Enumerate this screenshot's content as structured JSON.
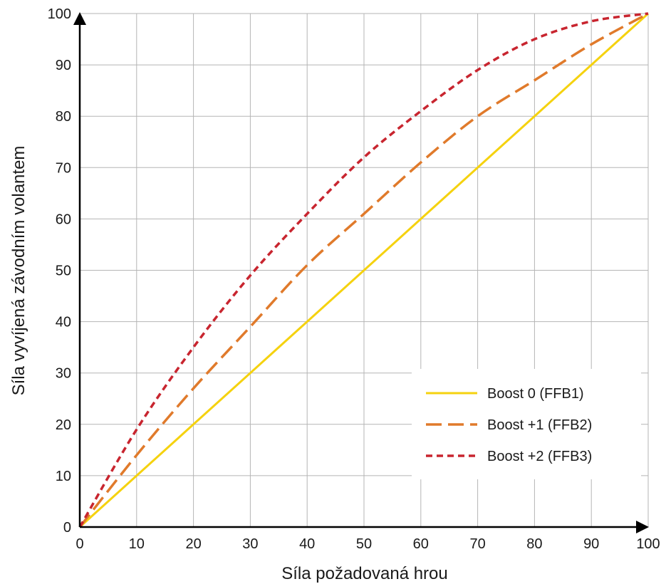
{
  "chart_data": {
    "type": "line",
    "xlabel": "Síla požadovaná hrou",
    "ylabel": "Síla vyvíjená závodním volantem",
    "xlim": [
      0,
      100
    ],
    "ylim": [
      0,
      100
    ],
    "xticks": [
      0,
      10,
      20,
      30,
      40,
      50,
      60,
      70,
      80,
      90,
      100
    ],
    "yticks": [
      0,
      10,
      20,
      30,
      40,
      50,
      60,
      70,
      80,
      90,
      100
    ],
    "grid": true,
    "legend_position": "bottom-right",
    "series": [
      {
        "name": "Boost 0 (FFB1)",
        "color": "#f5d20f",
        "dash": "solid",
        "x": [
          0,
          10,
          20,
          30,
          40,
          50,
          60,
          70,
          80,
          90,
          100
        ],
        "y": [
          0,
          10,
          20,
          30,
          40,
          50,
          60,
          70,
          80,
          90,
          100
        ]
      },
      {
        "name": "Boost +1 (FFB2)",
        "color": "#e07a2b",
        "dash": "dashed",
        "x": [
          0,
          10,
          20,
          30,
          40,
          50,
          60,
          70,
          80,
          90,
          100
        ],
        "y": [
          0,
          14,
          27,
          39,
          51,
          61,
          71,
          80,
          87,
          94,
          100
        ]
      },
      {
        "name": "Boost +2 (FFB3)",
        "color": "#c8252f",
        "dash": "dotted",
        "x": [
          0,
          10,
          20,
          30,
          40,
          50,
          60,
          70,
          80,
          90,
          100
        ],
        "y": [
          0,
          19,
          35,
          49,
          61,
          72,
          81,
          89,
          95,
          98.5,
          100
        ]
      }
    ]
  }
}
